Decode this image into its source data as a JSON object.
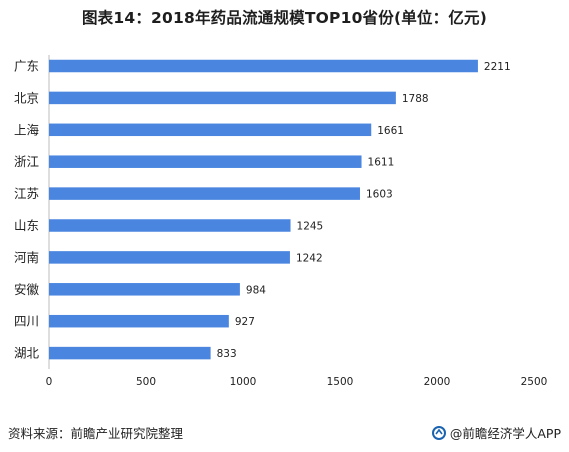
{
  "chart_data": {
    "type": "bar",
    "orientation": "horizontal",
    "title": "图表14：2018年药品流通规模TOP10省份(单位：亿元)",
    "categories": [
      "广东",
      "北京",
      "上海",
      "浙江",
      "江苏",
      "山东",
      "河南",
      "安徽",
      "四川",
      "湖北"
    ],
    "values": [
      2211,
      1788,
      1661,
      1611,
      1603,
      1245,
      1242,
      984,
      927,
      833
    ],
    "xlim": [
      0,
      2500
    ],
    "xticks": [
      0,
      500,
      1000,
      1500,
      2000,
      2500
    ],
    "xlabel": "",
    "ylabel": "",
    "grid": false,
    "bar_color": "#4a86e0",
    "data_labels": true
  },
  "footer": {
    "source": "资料来源：前瞻产业研究院整理",
    "brand": "@前瞻经济学人APP"
  },
  "colors": {
    "brand": "#1a63b0",
    "axis": "#bdbdbd"
  }
}
